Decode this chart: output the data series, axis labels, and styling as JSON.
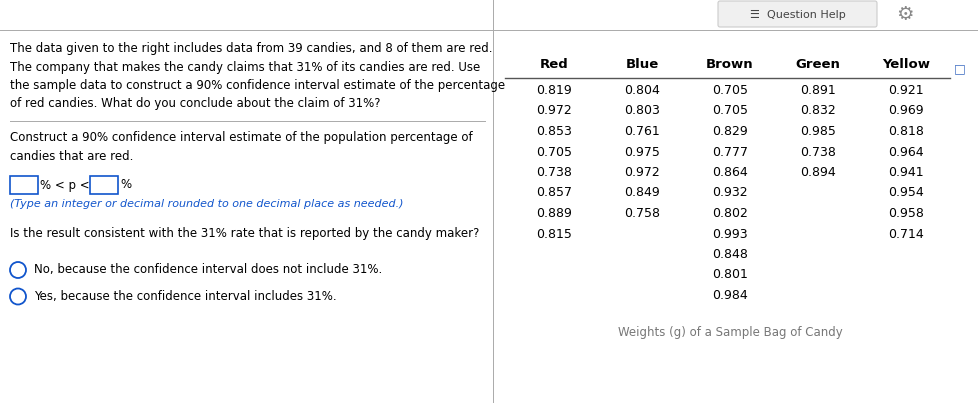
{
  "title_text": "Weights (g) of a Sample Bag of Candy",
  "question_text_lines": [
    "The data given to the right includes data from 39 candies, and 8 of them are red.",
    "The company that makes the candy claims that 31% of its candies are red. Use",
    "the sample data to construct a 90% confidence interval estimate of the percentage",
    "of red candies. What do you conclude about the claim of 31%?"
  ],
  "construct_text_lines": [
    "Construct a 90% confidence interval estimate of the population percentage of",
    "candies that are red."
  ],
  "type_note": "(Type an integer or decimal rounded to one decimal place as needed.)",
  "consistent_question": "Is the result consistent with the 31% rate that is reported by the candy maker?",
  "option1": "No, because the confidence interval does not include 31%.",
  "option2": "Yes, because the confidence interval includes 31%.",
  "col_headers": [
    "Red",
    "Blue",
    "Brown",
    "Green",
    "Yellow"
  ],
  "col_data": {
    "Red": [
      0.819,
      0.972,
      0.853,
      0.705,
      0.738,
      0.857,
      0.889,
      0.815,
      null,
      null,
      null
    ],
    "Blue": [
      0.804,
      0.803,
      0.761,
      0.975,
      0.972,
      0.849,
      0.758,
      null,
      null,
      null,
      null
    ],
    "Brown": [
      0.705,
      0.705,
      0.829,
      0.777,
      0.864,
      0.932,
      0.802,
      0.993,
      0.848,
      0.801,
      0.984
    ],
    "Green": [
      0.891,
      0.832,
      0.985,
      0.738,
      0.894,
      null,
      null,
      null,
      null,
      null,
      null
    ],
    "Yellow": [
      0.921,
      0.969,
      0.818,
      0.964,
      0.941,
      0.954,
      0.958,
      0.714,
      null,
      null,
      null
    ]
  },
  "bg_color": "#ffffff",
  "text_color": "#000000",
  "link_color": "#1155CC",
  "header_divider_color": "#555555",
  "divider_color": "#aaaaaa",
  "top_bar_color": "#f0f0f0",
  "top_bar_border_color": "#cccccc",
  "gear_color": "#888888",
  "qhelp_color": "#444444",
  "input_box_color": "#1155CC",
  "radio_color": "#1155CC",
  "corner_icon_color": "#4472C4",
  "caption_color": "#777777",
  "figsize": [
    9.79,
    4.03
  ],
  "dpi": 100
}
